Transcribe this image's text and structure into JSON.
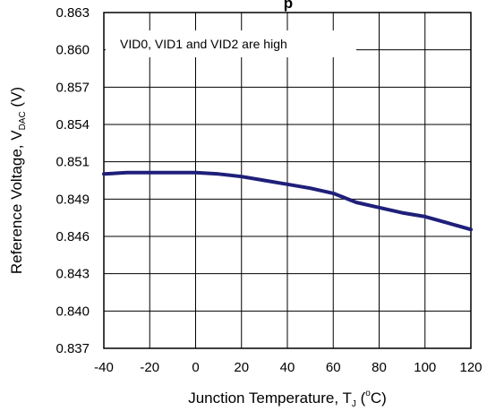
{
  "chart_data": {
    "type": "line",
    "title_partial": "p",
    "annotation": "VID0, VID1 and VID2 are high",
    "xlabel": {
      "main": "Junction Temperature, T",
      "subscript": "J",
      "open": " (",
      "degree": "o",
      "unit": "C)"
    },
    "ylabel": {
      "main": "Reference Voltage, V",
      "subscript": "DAC",
      "unit": " (V)"
    },
    "xlim": [
      -40,
      120
    ],
    "ylim": [
      0.837,
      0.863
    ],
    "x_ticks": [
      "-40",
      "-20",
      "0",
      "20",
      "40",
      "60",
      "80",
      "100",
      "120"
    ],
    "y_ticks": [
      "0.837",
      "0.840",
      "0.843",
      "0.846",
      "0.849",
      "0.851",
      "0.854",
      "0.857",
      "0.860",
      "0.863"
    ],
    "grid": true,
    "line_color": "#1f1f7a",
    "series": [
      {
        "x": [
          -40,
          -30,
          -20,
          -10,
          0,
          10,
          20,
          30,
          40,
          50,
          60,
          70,
          80,
          90,
          100,
          110,
          120
        ],
        "y": [
          0.8505,
          0.8506,
          0.8506,
          0.8506,
          0.8506,
          0.8505,
          0.8503,
          0.85,
          0.8497,
          0.8494,
          0.849,
          0.8483,
          0.8479,
          0.8475,
          0.8472,
          0.8467,
          0.8462
        ]
      }
    ]
  }
}
